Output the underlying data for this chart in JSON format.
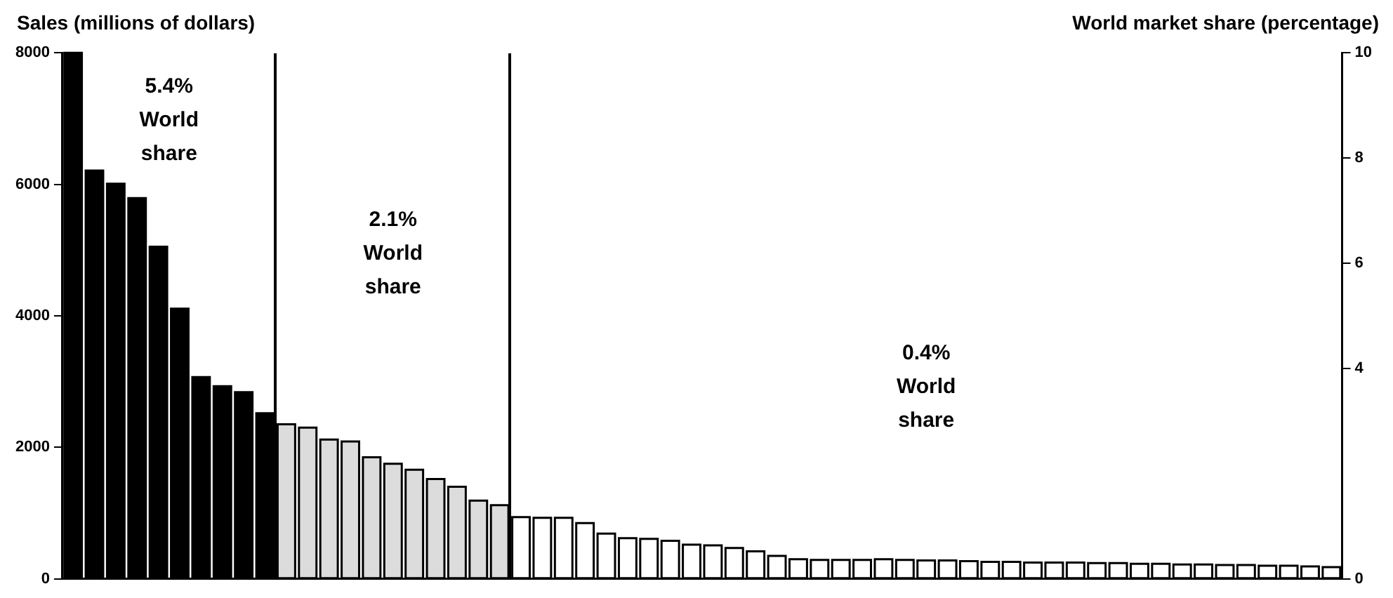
{
  "chart_data": {
    "type": "bar",
    "ylabel": "Sales (millions of dollars)",
    "y2label": "World market share (percentage)",
    "annotations": [
      "5.4% World share",
      "2.1% World share",
      "0.4% World share"
    ],
    "categories": [
      null,
      null,
      null,
      null,
      null,
      null,
      null,
      null,
      null,
      null,
      null,
      null,
      null,
      null,
      null,
      null,
      null,
      null,
      null,
      null,
      null,
      null,
      null,
      null,
      null,
      null,
      null,
      null,
      null,
      null,
      null,
      null,
      null,
      null,
      null,
      null,
      null,
      null,
      null,
      null,
      null,
      null,
      null,
      null,
      null,
      null,
      null,
      null,
      null,
      null,
      null,
      null,
      null,
      null,
      null,
      null,
      null,
      null,
      null,
      null
    ],
    "values": [
      8000,
      6210,
      6010,
      5790,
      5050,
      4110,
      3070,
      2930,
      2840,
      2520,
      2350,
      2300,
      2120,
      2090,
      1850,
      1750,
      1660,
      1520,
      1400,
      1190,
      1120,
      940,
      930,
      930,
      850,
      690,
      620,
      610,
      580,
      520,
      510,
      470,
      420,
      350,
      300,
      290,
      290,
      290,
      300,
      290,
      280,
      280,
      270,
      260,
      260,
      250,
      250,
      250,
      240,
      240,
      230,
      230,
      220,
      220,
      210,
      210,
      200,
      200,
      190,
      180
    ],
    "colors": [
      "#000000",
      "#000000",
      "#000000",
      "#000000",
      "#000000",
      "#000000",
      "#000000",
      "#000000",
      "#000000",
      "#000000",
      "#dcdcdc",
      "#dcdcdc",
      "#dcdcdc",
      "#dcdcdc",
      "#dcdcdc",
      "#dcdcdc",
      "#dcdcdc",
      "#dcdcdc",
      "#dcdcdc",
      "#dcdcdc",
      "#dcdcdc",
      "#ffffff",
      "#ffffff",
      "#ffffff",
      "#ffffff",
      "#ffffff",
      "#ffffff",
      "#ffffff",
      "#ffffff",
      "#ffffff",
      "#ffffff",
      "#ffffff",
      "#ffffff",
      "#ffffff",
      "#ffffff",
      "#ffffff",
      "#ffffff",
      "#ffffff",
      "#ffffff",
      "#ffffff",
      "#ffffff",
      "#ffffff",
      "#ffffff",
      "#ffffff",
      "#ffffff",
      "#ffffff",
      "#ffffff",
      "#ffffff",
      "#ffffff",
      "#ffffff",
      "#ffffff",
      "#ffffff",
      "#ffffff",
      "#ffffff",
      "#ffffff",
      "#ffffff",
      "#ffffff",
      "#ffffff",
      "#ffffff",
      "#ffffff"
    ],
    "ylim": [
      0,
      8000
    ],
    "yticks": [
      0,
      2000,
      4000,
      6000,
      8000
    ],
    "y2lim": [
      0,
      10
    ],
    "y2ticks": [
      0,
      4,
      6,
      8,
      10
    ],
    "grid": false
  }
}
